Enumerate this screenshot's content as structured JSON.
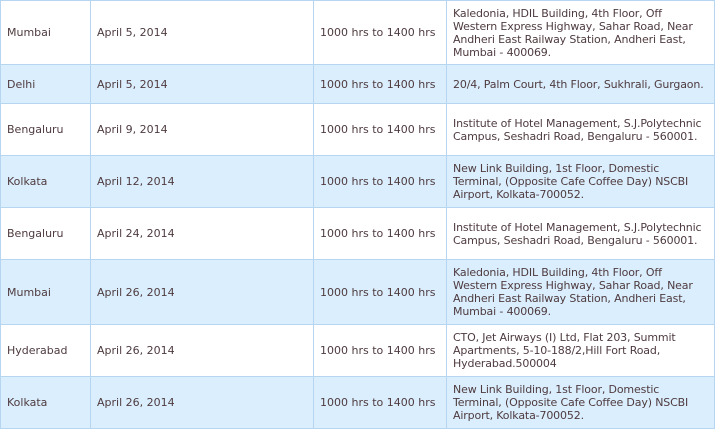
{
  "rows": [
    {
      "city": "Mumbai",
      "date": "April 5, 2014",
      "time": "1000 hrs to 1400 hrs",
      "address": "Kaledonia, HDIL Building, 4th Floor, Off Western Express Highway, Sahar Road, Near Andheri East Railway Station, Andheri East, Mumbai - 400069."
    },
    {
      "city": "Delhi",
      "date": "April 5, 2014",
      "time": "1000 hrs to 1400 hrs",
      "address": "20/4, Palm Court, 4th Floor, Sukhrali, Gurgaon."
    },
    {
      "city": "Bengaluru",
      "date": "April 9, 2014",
      "time": "1000 hrs to 1400 hrs",
      "address": "Institute of Hotel Management, S.J.Polytechnic Campus, Seshadri Road, Bengaluru - 560001."
    },
    {
      "city": "Kolkata",
      "date": "April 12, 2014",
      "time": "1000 hrs to 1400 hrs",
      "address": "New Link Building, 1st Floor, Domestic Terminal, (Opposite Cafe Coffee Day) NSCBI Airport, Kolkata-700052."
    },
    {
      "city": "Bengaluru",
      "date": "April 24, 2014",
      "time": "1000 hrs to 1400 hrs",
      "address": "Institute of Hotel Management, S.J.Polytechnic Campus, Seshadri Road, Bengaluru - 560001."
    },
    {
      "city": "Mumbai",
      "date": "April 26, 2014",
      "time": "1000 hrs to 1400 hrs",
      "address": "Kaledonia, HDIL Building, 4th Floor, Off Western Express Highway, Sahar Road, Near Andheri East Railway Station, Andheri East, Mumbai - 400069."
    },
    {
      "city": "Hyderabad",
      "date": "April 26, 2014",
      "time": "1000 hrs to 1400 hrs",
      "address": "CTO, Jet Airways (I) Ltd, Flat 203, Summit Apartments, 5-10-188/2,Hill Fort Road, Hyderabad.500004"
    },
    {
      "city": "Kolkata",
      "date": "April 26, 2014",
      "time": "1000 hrs to 1400 hrs",
      "address": "New Link Building, 1st Floor, Domestic Terminal, (Opposite Cafe Coffee Day) NSCBI Airport, Kolkata-700052."
    }
  ],
  "colors": {
    "row_alt": "#dbeefd",
    "border": "#b5d5f0",
    "text": "#4e3b3f"
  }
}
